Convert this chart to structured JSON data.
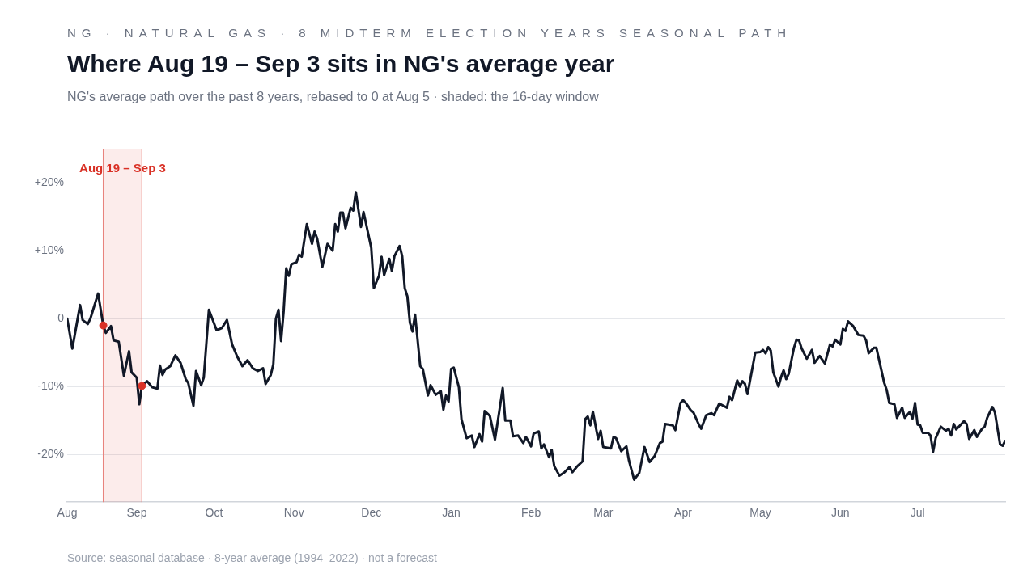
{
  "chart_data": {
    "type": "line",
    "title": "Where Aug 19 – Sep 3 sits in NG's average year",
    "subtitle": "NG's average path over the past 8 years, rebased to 0 at Aug 5 · shaded: the 16-day window",
    "annotations": [
      "NG · NATURAL GAS · 8 MIDTERM ELECTION YEARS SEASONAL PATH",
      "Source: seasonal database · 8-year average (1994–2022) · not a forecast"
    ],
    "series": [
      {
        "type": "line",
        "color": "#111827",
        "x": [
          "2022-08-05",
          "2022-08-07",
          "2022-08-10",
          "2022-08-11",
          "2022-08-13",
          "2022-08-14",
          "2022-08-17",
          "2022-08-19",
          "2022-08-20",
          "2022-08-22",
          "2022-08-23",
          "2022-08-25",
          "2022-08-27",
          "2022-08-29",
          "2022-08-30",
          "2022-09-01",
          "2022-09-02",
          "2022-09-03",
          "2022-09-05",
          "2022-09-07",
          "2022-09-09",
          "2022-09-10",
          "2022-09-11",
          "2022-09-12",
          "2022-09-14",
          "2022-09-16",
          "2022-09-18",
          "2022-09-20",
          "2022-09-21",
          "2022-09-23",
          "2022-09-24",
          "2022-09-26",
          "2022-09-27",
          "2022-09-29",
          "2022-10-02",
          "2022-10-04",
          "2022-10-06",
          "2022-10-08",
          "2022-10-10",
          "2022-10-12",
          "2022-10-14",
          "2022-10-16",
          "2022-10-18",
          "2022-10-20",
          "2022-10-21",
          "2022-10-23",
          "2022-10-24",
          "2022-10-25",
          "2022-10-26",
          "2022-10-27",
          "2022-10-28",
          "2022-10-29",
          "2022-10-30",
          "2022-10-31",
          "2022-11-02",
          "2022-11-03",
          "2022-11-04",
          "2022-11-06",
          "2022-11-08",
          "2022-11-09",
          "2022-11-10",
          "2022-11-12",
          "2022-11-14",
          "2022-11-16",
          "2022-11-17",
          "2022-11-18",
          "2022-11-19",
          "2022-11-20",
          "2022-11-21",
          "2022-11-23",
          "2022-11-24",
          "2022-11-25",
          "2022-11-27",
          "2022-11-28",
          "2022-12-01",
          "2022-12-02",
          "2022-12-04",
          "2022-12-05",
          "2022-12-06",
          "2022-12-08",
          "2022-12-09",
          "2022-12-10",
          "2022-12-12",
          "2022-12-13",
          "2022-12-14",
          "2022-12-15",
          "2022-12-16",
          "2022-12-17",
          "2022-12-18",
          "2022-12-20",
          "2022-12-21",
          "2022-12-23",
          "2022-12-24",
          "2022-12-26",
          "2022-12-28",
          "2022-12-29",
          "2022-12-30",
          "2022-12-31",
          "2023-01-01",
          "2023-01-02",
          "2023-01-04",
          "2023-01-05",
          "2023-01-07",
          "2023-01-09",
          "2023-01-10",
          "2023-01-12",
          "2023-01-13",
          "2023-01-14",
          "2023-01-16",
          "2023-01-18",
          "2023-01-20",
          "2023-01-21",
          "2023-01-22",
          "2023-01-24",
          "2023-01-25",
          "2023-01-27",
          "2023-01-29",
          "2023-01-30",
          "2023-02-01",
          "2023-02-02",
          "2023-02-04",
          "2023-02-05",
          "2023-02-06",
          "2023-02-08",
          "2023-02-09",
          "2023-02-10",
          "2023-02-12",
          "2023-02-14",
          "2023-02-16",
          "2023-02-17",
          "2023-02-19",
          "2023-02-21",
          "2023-02-22",
          "2023-02-23",
          "2023-02-24",
          "2023-02-25",
          "2023-02-27",
          "2023-02-28",
          "2023-03-01",
          "2023-03-04",
          "2023-03-05",
          "2023-03-06",
          "2023-03-08",
          "2023-03-10",
          "2023-03-11",
          "2023-03-13",
          "2023-03-15",
          "2023-03-17",
          "2023-03-19",
          "2023-03-21",
          "2023-03-23",
          "2023-03-24",
          "2023-03-25",
          "2023-03-28",
          "2023-03-29",
          "2023-03-31",
          "2023-04-01",
          "2023-04-02",
          "2023-04-04",
          "2023-04-05",
          "2023-04-07",
          "2023-04-08",
          "2023-04-09",
          "2023-04-10",
          "2023-04-12",
          "2023-04-13",
          "2023-04-15",
          "2023-04-18",
          "2023-04-19",
          "2023-04-20",
          "2023-04-22",
          "2023-04-23",
          "2023-04-24",
          "2023-04-25",
          "2023-04-26",
          "2023-04-29",
          "2023-05-01",
          "2023-05-02",
          "2023-05-03",
          "2023-05-04",
          "2023-05-05",
          "2023-05-06",
          "2023-05-08",
          "2023-05-09",
          "2023-05-10",
          "2023-05-11",
          "2023-05-12",
          "2023-05-14",
          "2023-05-15",
          "2023-05-16",
          "2023-05-17",
          "2023-05-19",
          "2023-05-21",
          "2023-05-22",
          "2023-05-24",
          "2023-05-26",
          "2023-05-28",
          "2023-05-29",
          "2023-05-30",
          "2023-06-01",
          "2023-06-02",
          "2023-06-03",
          "2023-06-04",
          "2023-06-06",
          "2023-06-08",
          "2023-06-10",
          "2023-06-11",
          "2023-06-12",
          "2023-06-14",
          "2023-06-15",
          "2023-06-17",
          "2023-06-18",
          "2023-06-19",
          "2023-06-20",
          "2023-06-22",
          "2023-06-23",
          "2023-06-25",
          "2023-06-26",
          "2023-06-28",
          "2023-06-29",
          "2023-06-30",
          "2023-07-01",
          "2023-07-02",
          "2023-07-03",
          "2023-07-05",
          "2023-07-06",
          "2023-07-07",
          "2023-07-08",
          "2023-07-10",
          "2023-07-12",
          "2023-07-13",
          "2023-07-14",
          "2023-07-15",
          "2023-07-16",
          "2023-07-19",
          "2023-07-20",
          "2023-07-21",
          "2023-07-23",
          "2023-07-24",
          "2023-07-26",
          "2023-07-27",
          "2023-07-28",
          "2023-07-30",
          "2023-07-31",
          "2023-08-02",
          "2023-08-03",
          "2023-08-04"
        ],
        "values": [
          0,
          -4.4,
          2.0,
          -0.2,
          -0.8,
          0,
          3.7,
          -1.0,
          -2.1,
          -1.1,
          -3.2,
          -3.4,
          -8.4,
          -4.8,
          -7.9,
          -8.7,
          -12.6,
          -9.9,
          -9.2,
          -10.1,
          -10.3,
          -6.9,
          -8.3,
          -7.5,
          -7.0,
          -5.4,
          -6.5,
          -8.9,
          -9.5,
          -12.8,
          -7.7,
          -9.8,
          -8.7,
          1.3,
          -1.7,
          -1.4,
          -0.2,
          -3.8,
          -5.6,
          -7.0,
          -6.1,
          -7.3,
          -7.7,
          -7.3,
          -9.6,
          -8.3,
          -6.7,
          0,
          1.3,
          -3.3,
          1.1,
          7.4,
          6.3,
          8.0,
          8.3,
          9.4,
          9.1,
          13.9,
          11.0,
          12.8,
          11.8,
          7.6,
          11.0,
          10.0,
          13.9,
          12.8,
          15.6,
          15.6,
          13.3,
          16.3,
          15.9,
          18.6,
          13.5,
          15.7,
          10.4,
          4.5,
          6.3,
          9.1,
          6.4,
          8.8,
          7.0,
          9.2,
          10.7,
          9.2,
          4.5,
          3.3,
          -0.6,
          -1.9,
          0.6,
          -7.0,
          -7.4,
          -11.3,
          -9.8,
          -11.2,
          -10.7,
          -13.4,
          -11.3,
          -12.2,
          -7.4,
          -7.2,
          -10.1,
          -14.8,
          -17.6,
          -17.2,
          -18.9,
          -17.0,
          -18.1,
          -13.6,
          -14.3,
          -17.8,
          -12.8,
          -10.2,
          -15.0,
          -15.0,
          -17.3,
          -17.2,
          -18.3,
          -17.4,
          -18.8,
          -16.9,
          -16.6,
          -19.1,
          -18.5,
          -20.4,
          -19.3,
          -21.7,
          -23.1,
          -22.6,
          -21.8,
          -22.6,
          -21.7,
          -21.0,
          -14.8,
          -14.4,
          -15.7,
          -13.7,
          -17.7,
          -16.5,
          -18.9,
          -19.1,
          -17.4,
          -17.6,
          -19.5,
          -18.8,
          -20.9,
          -23.7,
          -22.7,
          -18.9,
          -21.1,
          -20.2,
          -18.3,
          -18.1,
          -15.5,
          -15.7,
          -16.4,
          -12.4,
          -12.0,
          -12.4,
          -13.5,
          -13.8,
          -15.5,
          -16.2,
          -15.2,
          -14.2,
          -13.9,
          -14.2,
          -12.5,
          -13.1,
          -11.5,
          -12.0,
          -9.1,
          -10.0,
          -9.2,
          -9.6,
          -11.1,
          -5.0,
          -4.9,
          -4.6,
          -5.1,
          -4.2,
          -4.7,
          -7.9,
          -10.0,
          -8.6,
          -7.6,
          -8.9,
          -8.1,
          -4.3,
          -3.1,
          -3.2,
          -4.4,
          -5.9,
          -4.6,
          -6.5,
          -5.5,
          -6.6,
          -3.8,
          -4.1,
          -3.1,
          -3.8,
          -1.5,
          -1.8,
          -0.4,
          -1.1,
          -2.4,
          -2.5,
          -3.2,
          -5.1,
          -4.3,
          -4.3,
          -7.7,
          -9.4,
          -10.5,
          -12.4,
          -12.6,
          -14.6,
          -13.1,
          -14.6,
          -13.7,
          -14.7,
          -12.4,
          -15.6,
          -15.7,
          -16.8,
          -16.8,
          -17.2,
          -19.6,
          -17.6,
          -15.9,
          -16.5,
          -16.2,
          -17.2,
          -15.5,
          -16.3,
          -15.1,
          -15.5,
          -17.7,
          -16.4,
          -17.4,
          -16.2,
          -15.9,
          -14.6,
          -13.0,
          -13.8,
          -18.5,
          -18.7,
          -18.0
        ]
      },
      {
        "type": "scatter",
        "color": "#d93025",
        "marker": "circle",
        "x": [
          "2022-08-19",
          "2022-09-03"
        ],
        "values": [
          -1.0,
          -9.9
        ]
      }
    ],
    "xlim": [
      "2022-08-05",
      "2023-08-04"
    ],
    "xticks": [
      {
        "value": "2022-08-05",
        "label": "Aug"
      },
      {
        "value": "2022-09-01",
        "label": "Sep"
      },
      {
        "value": "2022-10-01",
        "label": "Oct"
      },
      {
        "value": "2022-11-01",
        "label": "Nov"
      },
      {
        "value": "2022-12-01",
        "label": "Dec"
      },
      {
        "value": "2023-01-01",
        "label": "Jan"
      },
      {
        "value": "2023-02-01",
        "label": "Feb"
      },
      {
        "value": "2023-03-01",
        "label": "Mar"
      },
      {
        "value": "2023-04-01",
        "label": "Apr"
      },
      {
        "value": "2023-05-01",
        "label": "May"
      },
      {
        "value": "2023-06-01",
        "label": "Jun"
      },
      {
        "value": "2023-07-01",
        "label": "Jul"
      }
    ],
    "ylim": [
      -27,
      25
    ],
    "yticks": [
      {
        "value": -20,
        "label": "-20%"
      },
      {
        "value": -10,
        "label": "-10%"
      },
      {
        "value": 0,
        "label": "0"
      },
      {
        "value": 10,
        "label": "+10%"
      },
      {
        "value": 20,
        "label": "+20%"
      }
    ],
    "bands": [
      {
        "axis": "x",
        "from": "2022-08-19",
        "to": "2022-09-03",
        "label": "Aug 19 – Sep 3",
        "color": "#d93025"
      }
    ],
    "ref_lines": [
      {
        "axis": "x",
        "value": "2022-08-19",
        "color": "#e8837d"
      },
      {
        "axis": "x",
        "value": "2022-09-03",
        "color": "#e8837d"
      }
    ],
    "grid": "y",
    "legend": false,
    "marker": "none",
    "line_style": "solid"
  }
}
